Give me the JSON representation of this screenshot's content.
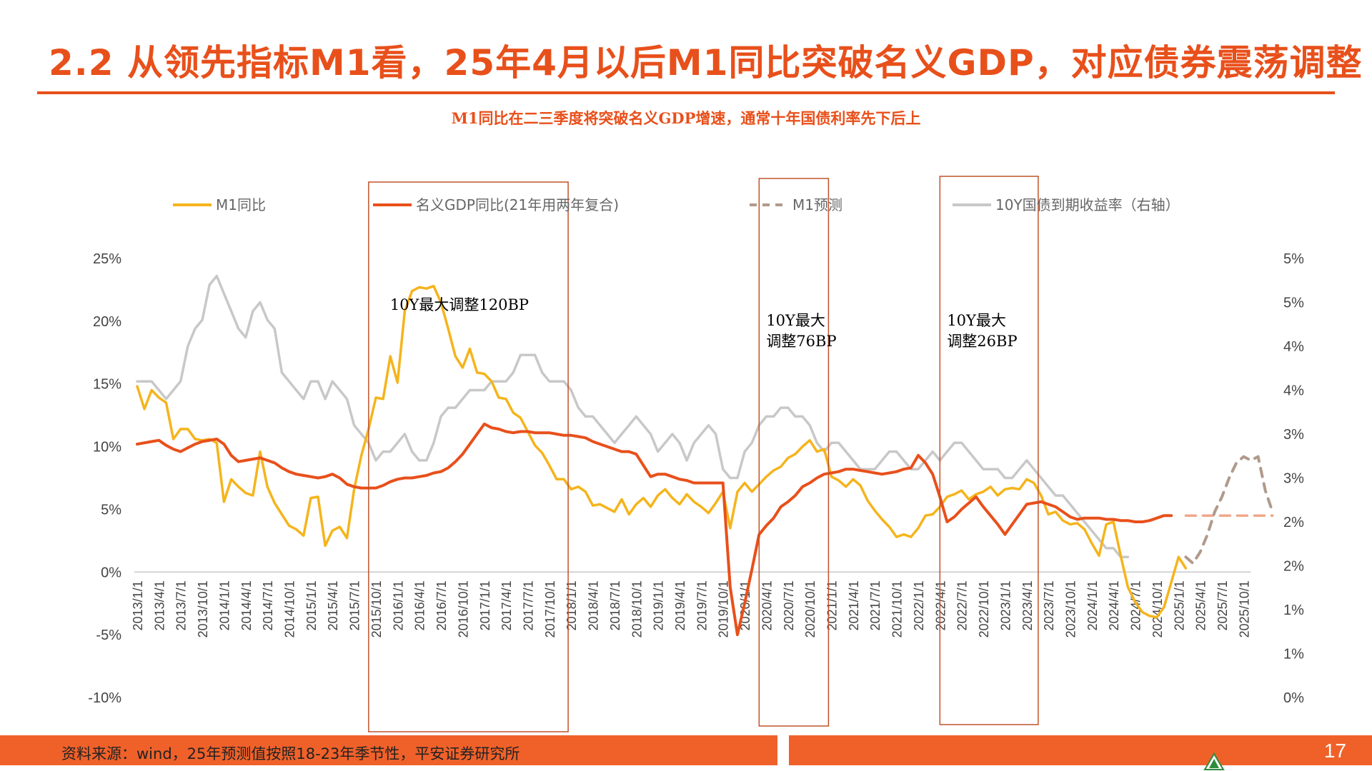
{
  "title": "2.2 从领先指标M1看，25年4月以后M1同比突破名义GDP，对应债券震荡调整",
  "subtitle": "M1同比在二三季度将突破名义GDP增速，通常十年国债利率先下后上",
  "footer": {
    "source": "资料来源：wind，25年预测值按照18-23年季节性，平安证券研究所",
    "page_number": "17"
  },
  "colors": {
    "brand": "#e8501b",
    "m1": "#f5b41c",
    "gdp": "#e8501b",
    "m1_forecast": "#b09a8c",
    "bond": "#c8c8c8",
    "forecast_gdp": "#f0a88a",
    "box": "#c0532a"
  },
  "chart_data": {
    "type": "line",
    "legend": [
      {
        "name": "M1同比",
        "key": "m1"
      },
      {
        "name": "名义GDP同比(21年用两年复合)",
        "key": "gdp"
      },
      {
        "name": "M1预测",
        "key": "m1_forecast"
      },
      {
        "name": "10Y国债到期收益率（右轴）",
        "key": "bond"
      }
    ],
    "x_start": "2013/1/1",
    "x_ticks": [
      "2013/1/1",
      "2013/4/1",
      "2013/7/1",
      "2013/10/1",
      "2014/1/1",
      "2014/4/1",
      "2014/7/1",
      "2014/10/1",
      "2015/1/1",
      "2015/4/1",
      "2015/7/1",
      "2015/10/1",
      "2016/1/1",
      "2016/4/1",
      "2016/7/1",
      "2016/10/1",
      "2017/1/1",
      "2017/4/1",
      "2017/7/1",
      "2017/10/1",
      "2018/1/1",
      "2018/4/1",
      "2018/7/1",
      "2018/10/1",
      "2019/1/1",
      "2019/4/1",
      "2019/7/1",
      "2019/10/1",
      "2020/1/1",
      "2020/4/1",
      "2020/7/1",
      "2020/10/1",
      "2021/1/1",
      "2021/4/1",
      "2021/7/1",
      "2021/10/1",
      "2022/1/1",
      "2022/4/1",
      "2022/7/1",
      "2022/10/1",
      "2023/1/1",
      "2023/4/1",
      "2023/7/1",
      "2023/10/1",
      "2024/1/1",
      "2024/4/1",
      "2024/7/1",
      "2024/10/1",
      "2025/1/1",
      "2025/4/1",
      "2025/7/1",
      "2025/10/1"
    ],
    "y_left": {
      "min": -10,
      "max": 25,
      "ticks": [
        "25%",
        "20%",
        "15%",
        "10%",
        "5%",
        "0%",
        "-5%",
        "-10%"
      ]
    },
    "y_right": {
      "min": 0,
      "max": 5,
      "ticks": [
        "5%",
        "5%",
        "4%",
        "4%",
        "3%",
        "3%",
        "2%",
        "2%",
        "1%",
        "1%",
        "0%"
      ]
    },
    "series": [
      {
        "name": "M1同比",
        "key": "m1",
        "start_month": 0,
        "values": [
          14.8,
          13.0,
          14.5,
          13.9,
          13.5,
          10.6,
          11.4,
          11.4,
          10.6,
          10.5,
          10.6,
          10.3,
          5.6,
          7.4,
          6.8,
          6.3,
          6.1,
          9.6,
          6.8,
          5.5,
          4.6,
          3.7,
          3.4,
          2.9,
          5.9,
          6.0,
          2.1,
          3.3,
          3.6,
          2.7,
          6.6,
          9.3,
          11.4,
          13.9,
          13.8,
          17.2,
          15.1,
          20.8,
          22.4,
          22.7,
          22.6,
          22.8,
          21.5,
          19.4,
          17.2,
          16.3,
          17.8,
          15.9,
          15.8,
          15.2,
          13.9,
          13.8,
          12.7,
          12.3,
          11.2,
          10.1,
          9.5,
          8.5,
          7.4,
          7.4,
          6.6,
          6.8,
          6.4,
          5.3,
          5.4,
          5.1,
          4.8,
          5.8,
          4.6,
          5.4,
          5.9,
          5.2,
          6.1,
          6.6,
          5.9,
          5.4,
          6.2,
          5.6,
          5.2,
          4.7,
          5.5,
          6.4,
          3.5,
          6.4,
          7.1,
          6.4,
          7.0,
          7.6,
          8.1,
          8.4,
          9.1,
          9.4,
          10.0,
          10.5,
          9.6,
          9.8,
          7.6,
          7.3,
          6.8,
          7.4,
          6.9,
          5.7,
          4.9,
          4.2,
          3.6,
          2.8,
          3.0,
          2.8,
          3.5,
          4.5,
          4.6,
          5.2,
          6.0,
          6.2,
          6.5,
          5.8,
          6.2,
          6.4,
          6.8,
          6.1,
          6.6,
          6.7,
          6.6,
          7.4,
          7.1,
          6.1,
          4.6,
          4.8,
          4.1,
          3.8,
          3.9,
          3.4,
          2.3,
          1.3,
          3.8,
          4.0,
          1.3,
          -1.2,
          -2.4,
          -3.2,
          -3.5,
          -3.6,
          -2.8,
          -0.8,
          1.2,
          0.3
        ]
      },
      {
        "name": "名义GDP同比(21年用两年复合)",
        "key": "gdp",
        "start_month": 0,
        "values": [
          10.2,
          10.3,
          10.4,
          10.5,
          10.1,
          9.8,
          9.6,
          9.9,
          10.2,
          10.4,
          10.5,
          10.6,
          10.2,
          9.3,
          8.8,
          8.9,
          9.0,
          9.1,
          8.9,
          8.7,
          8.3,
          8.0,
          7.8,
          7.7,
          7.6,
          7.5,
          7.6,
          7.8,
          7.5,
          7.0,
          6.8,
          6.7,
          6.7,
          6.7,
          6.9,
          7.2,
          7.4,
          7.5,
          7.5,
          7.6,
          7.7,
          7.9,
          8.0,
          8.3,
          8.8,
          9.4,
          10.2,
          11.0,
          11.8,
          11.5,
          11.4,
          11.2,
          11.1,
          11.2,
          11.2,
          11.1,
          11.1,
          11.1,
          11.0,
          10.9,
          10.9,
          10.8,
          10.7,
          10.4,
          10.2,
          10.0,
          9.8,
          9.6,
          9.6,
          9.4,
          8.5,
          7.6,
          7.8,
          7.8,
          7.6,
          7.4,
          7.3,
          7.1,
          7.1,
          7.1,
          7.1,
          7.1,
          -1.2,
          -5.0,
          -2.5,
          0.2,
          3.0,
          3.7,
          4.3,
          5.2,
          5.6,
          6.1,
          6.8,
          7.1,
          7.5,
          7.8,
          7.9,
          8.0,
          8.2,
          8.2,
          8.1,
          8.0,
          7.9,
          7.8,
          7.9,
          8.0,
          8.2,
          8.3,
          9.3,
          8.7,
          7.8,
          6.0,
          4.0,
          4.4,
          5.0,
          5.5,
          6.0,
          5.2,
          4.5,
          3.8,
          3.0,
          3.8,
          4.6,
          5.4,
          5.5,
          5.6,
          5.4,
          5.2,
          4.8,
          4.4,
          4.2,
          4.3,
          4.3,
          4.3,
          4.2,
          4.2,
          4.1,
          4.1,
          4.0,
          4.0,
          4.1,
          4.3,
          4.5,
          4.5
        ]
      },
      {
        "name": "M1预测",
        "key": "m1_forecast",
        "start_month": 145,
        "values": [
          1.2,
          0.7,
          1.6,
          3.0,
          4.8,
          6.0,
          7.5,
          8.7,
          9.2,
          8.9,
          9.2,
          6.5,
          4.8
        ]
      },
      {
        "name": "名义GDP同比预测",
        "key": "gdp_forecast",
        "start_month": 145,
        "values": [
          4.5,
          4.5,
          4.5,
          4.5,
          4.5,
          4.5,
          4.5,
          4.5,
          4.5,
          4.5,
          4.5,
          4.5,
          4.5
        ]
      },
      {
        "name": "10Y国债到期收益率（右轴）",
        "key": "bond",
        "axis": "right",
        "start_month": 0,
        "values": [
          3.6,
          3.6,
          3.6,
          3.5,
          3.4,
          3.5,
          3.6,
          4.0,
          4.2,
          4.3,
          4.7,
          4.8,
          4.6,
          4.4,
          4.2,
          4.1,
          4.4,
          4.5,
          4.3,
          4.2,
          3.7,
          3.6,
          3.5,
          3.4,
          3.6,
          3.6,
          3.4,
          3.6,
          3.5,
          3.4,
          3.1,
          3.0,
          2.9,
          2.7,
          2.8,
          2.8,
          2.9,
          3.0,
          2.8,
          2.7,
          2.7,
          2.9,
          3.2,
          3.3,
          3.3,
          3.4,
          3.5,
          3.5,
          3.5,
          3.6,
          3.6,
          3.6,
          3.7,
          3.9,
          3.9,
          3.9,
          3.7,
          3.6,
          3.6,
          3.6,
          3.5,
          3.3,
          3.2,
          3.2,
          3.1,
          3.0,
          2.9,
          3.0,
          3.1,
          3.2,
          3.1,
          3.0,
          2.8,
          2.9,
          3.0,
          2.9,
          2.7,
          2.9,
          3.0,
          3.1,
          3.0,
          2.6,
          2.5,
          2.5,
          2.8,
          2.9,
          3.1,
          3.2,
          3.2,
          3.3,
          3.3,
          3.2,
          3.2,
          3.1,
          2.9,
          2.8,
          2.9,
          2.9,
          2.8,
          2.7,
          2.6,
          2.6,
          2.6,
          2.7,
          2.8,
          2.8,
          2.7,
          2.6,
          2.6,
          2.7,
          2.8,
          2.7,
          2.8,
          2.9,
          2.9,
          2.8,
          2.7,
          2.6,
          2.6,
          2.6,
          2.5,
          2.5,
          2.6,
          2.7,
          2.6,
          2.5,
          2.4,
          2.3,
          2.3,
          2.2,
          2.1,
          2.0,
          1.9,
          1.8,
          1.7,
          1.7,
          1.6,
          1.6
        ]
      }
    ],
    "boxes": [
      {
        "label_line1": "10Y最大调整120BP",
        "label_line2": "",
        "from": "2015/9/1",
        "to": "2017/12/1"
      },
      {
        "label_line1": "10Y最大",
        "label_line2": "调整76BP",
        "from": "2020/3/1",
        "to": "2020/12/1"
      },
      {
        "label_line1": "10Y最大",
        "label_line2": "调整26BP",
        "from": "2022/4/1",
        "to": "2023/5/1"
      }
    ]
  }
}
